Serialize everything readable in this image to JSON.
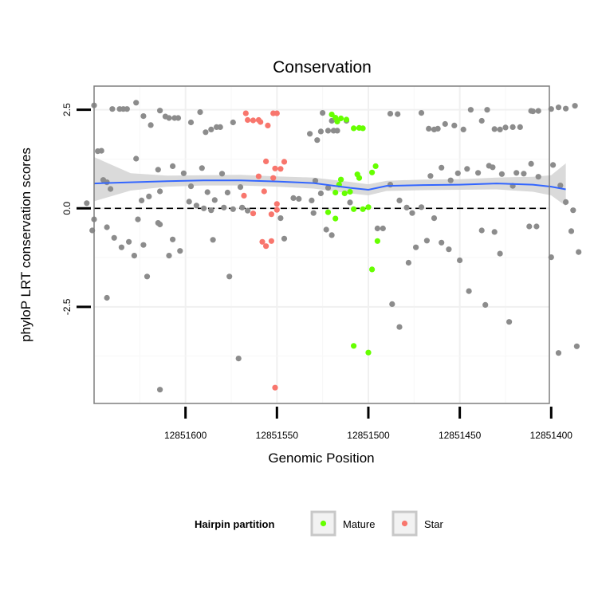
{
  "chart_data": {
    "type": "scatter",
    "title": "Conservation",
    "xlabel": "Genomic Position",
    "ylabel": "phyloP LRT conservation scores",
    "x_reversed": true,
    "xlim": [
      12851401,
      12851650
    ],
    "ylim": [
      -4.95,
      3.1
    ],
    "x_ticks": [
      12851600,
      12851550,
      12851500,
      12851450,
      12851400
    ],
    "x_tick_labels": [
      "12851600",
      "12851550",
      "12851500",
      "12851450",
      "12851400"
    ],
    "y_ticks": [
      2.5,
      0.0,
      -2.5
    ],
    "y_tick_labels": [
      "2.5",
      "0.0",
      "-2.5"
    ],
    "reference_line": {
      "y": 0,
      "style": "dashed",
      "color": "#000000"
    },
    "grid": true,
    "legend": {
      "title": "Hairpin partition",
      "position": "bottom",
      "entries": [
        {
          "label": "Mature",
          "color": "#66ff00"
        },
        {
          "label": "Star",
          "color": "#f8766d"
        }
      ]
    },
    "colors": {
      "other": "#8c8c8c",
      "mature": "#66ff00",
      "star": "#f8766d",
      "smooth_line": "#3366ff",
      "confidence_band": "#d3d3d3"
    },
    "series": [
      {
        "name": "Mature",
        "color": "#66ff00",
        "points": [
          [
            12851520,
            2.38
          ],
          [
            12851518,
            2.3
          ],
          [
            12851517,
            2.2
          ],
          [
            12851515,
            2.28
          ],
          [
            12851512,
            2.25
          ],
          [
            12851508,
            2.03
          ],
          [
            12851505,
            2.04
          ],
          [
            12851503,
            2.03
          ],
          [
            12851515,
            0.73
          ],
          [
            12851518,
            0.4
          ],
          [
            12851513,
            0.38
          ],
          [
            12851505,
            0.77
          ],
          [
            12851498,
            0.91
          ],
          [
            12851496,
            1.07
          ],
          [
            12851510,
            0.42
          ],
          [
            12851508,
            -0.02
          ],
          [
            12851522,
            -0.1
          ],
          [
            12851506,
            0.86
          ],
          [
            12851516,
            0.6
          ],
          [
            12851500,
            0.03
          ],
          [
            12851503,
            -0.02
          ],
          [
            12851518,
            -0.26
          ],
          [
            12851495,
            -0.83
          ],
          [
            12851508,
            -3.49
          ],
          [
            12851500,
            -3.66
          ],
          [
            12851498,
            -1.55
          ]
        ]
      },
      {
        "name": "Star",
        "color": "#f8766d",
        "points": [
          [
            12851567,
            2.41
          ],
          [
            12851566,
            2.24
          ],
          [
            12851563,
            2.23
          ],
          [
            12851560,
            2.24
          ],
          [
            12851559,
            2.19
          ],
          [
            12851555,
            2.1
          ],
          [
            12851552,
            2.41
          ],
          [
            12851550,
            2.41
          ],
          [
            12851556,
            1.19
          ],
          [
            12851551,
            1.01
          ],
          [
            12851548,
            1.0
          ],
          [
            12851546,
            1.18
          ],
          [
            12851560,
            0.81
          ],
          [
            12851568,
            0.32
          ],
          [
            12851557,
            0.43
          ],
          [
            12851552,
            0.77
          ],
          [
            12851550,
            -0.04
          ],
          [
            12851553,
            -0.15
          ],
          [
            12851563,
            -0.13
          ],
          [
            12851550,
            0.11
          ],
          [
            12851556,
            -0.96
          ],
          [
            12851558,
            -0.85
          ],
          [
            12851553,
            -0.83
          ],
          [
            12851551,
            -4.55
          ]
        ]
      },
      {
        "points": [
          [
            12851650,
            2.61
          ],
          [
            12851640,
            2.52
          ],
          [
            12851636,
            2.52
          ],
          [
            12851634,
            2.52
          ],
          [
            12851632,
            2.52
          ],
          [
            12851627,
            2.68
          ],
          [
            12851623,
            2.34
          ],
          [
            12851619,
            2.11
          ],
          [
            12851614,
            2.48
          ],
          [
            12851611,
            2.33
          ],
          [
            12851609,
            2.29
          ],
          [
            12851606,
            2.29
          ],
          [
            12851604,
            2.29
          ],
          [
            12851597,
            2.18
          ],
          [
            12851592,
            2.44
          ],
          [
            12851589,
            1.93
          ],
          [
            12851586,
            2.0
          ],
          [
            12851583,
            2.06
          ],
          [
            12851581,
            2.06
          ],
          [
            12851574,
            2.18
          ],
          [
            12851532,
            1.89
          ],
          [
            12851526,
            1.95
          ],
          [
            12851528,
            1.73
          ],
          [
            12851522,
            1.97
          ],
          [
            12851519,
            1.97
          ],
          [
            12851517,
            1.97
          ],
          [
            12851525,
            2.42
          ],
          [
            12851520,
            2.22
          ],
          [
            12851512,
            2.22
          ],
          [
            12851488,
            2.4
          ],
          [
            12851484,
            2.39
          ],
          [
            12851471,
            2.42
          ],
          [
            12851467,
            2.02
          ],
          [
            12851464,
            2.0
          ],
          [
            12851462,
            2.02
          ],
          [
            12851458,
            2.14
          ],
          [
            12851453,
            2.1
          ],
          [
            12851448,
            2.0
          ],
          [
            12851444,
            2.5
          ],
          [
            12851435,
            2.5
          ],
          [
            12851438,
            2.22
          ],
          [
            12851431,
            2.01
          ],
          [
            12851428,
            2.0
          ],
          [
            12851425,
            2.05
          ],
          [
            12851421,
            2.06
          ],
          [
            12851417,
            2.06
          ],
          [
            12851411,
            2.47
          ],
          [
            12851410,
            2.46
          ],
          [
            12851407,
            2.47
          ],
          [
            12851400,
            2.52
          ],
          [
            12851396,
            2.56
          ],
          [
            12851392,
            2.53
          ],
          [
            12851387,
            2.6
          ],
          [
            12851648,
            1.45
          ],
          [
            12851646,
            1.46
          ],
          [
            12851645,
            0.72
          ],
          [
            12851643,
            0.66
          ],
          [
            12851641,
            0.49
          ],
          [
            12851627,
            1.26
          ],
          [
            12851615,
            0.98
          ],
          [
            12851607,
            1.07
          ],
          [
            12851601,
            0.89
          ],
          [
            12851591,
            1.02
          ],
          [
            12851580,
            0.88
          ],
          [
            12851577,
            0.4
          ],
          [
            12851570,
            0.54
          ],
          [
            12851597,
            0.56
          ],
          [
            12851588,
            0.41
          ],
          [
            12851584,
            0.21
          ],
          [
            12851614,
            0.43
          ],
          [
            12851620,
            0.3
          ],
          [
            12851624,
            0.2
          ],
          [
            12851598,
            0.17
          ],
          [
            12851594,
            0.07
          ],
          [
            12851590,
            0.0
          ],
          [
            12851586,
            -0.05
          ],
          [
            12851579,
            0.02
          ],
          [
            12851574,
            -0.02
          ],
          [
            12851569,
            0.02
          ],
          [
            12851541,
            0.26
          ],
          [
            12851538,
            0.24
          ],
          [
            12851531,
            0.2
          ],
          [
            12851529,
            0.7
          ],
          [
            12851526,
            0.38
          ],
          [
            12851522,
            0.52
          ],
          [
            12851510,
            0.15
          ],
          [
            12851488,
            0.6
          ],
          [
            12851483,
            0.2
          ],
          [
            12851479,
            0.02
          ],
          [
            12851476,
            -0.12
          ],
          [
            12851471,
            0.03
          ],
          [
            12851466,
            0.82
          ],
          [
            12851460,
            1.03
          ],
          [
            12851455,
            0.71
          ],
          [
            12851451,
            0.89
          ],
          [
            12851446,
            1.0
          ],
          [
            12851440,
            0.9
          ],
          [
            12851434,
            1.08
          ],
          [
            12851432,
            1.04
          ],
          [
            12851427,
            0.87
          ],
          [
            12851421,
            0.57
          ],
          [
            12851419,
            0.9
          ],
          [
            12851415,
            0.88
          ],
          [
            12851411,
            1.13
          ],
          [
            12851407,
            0.8
          ],
          [
            12851399,
            1.1
          ],
          [
            12851395,
            0.58
          ],
          [
            12851392,
            0.16
          ],
          [
            12851388,
            -0.05
          ],
          [
            12851654,
            0.13
          ],
          [
            12851650,
            -0.28
          ],
          [
            12851651,
            -0.56
          ],
          [
            12851643,
            -0.48
          ],
          [
            12851639,
            -0.75
          ],
          [
            12851635,
            -0.99
          ],
          [
            12851631,
            -0.85
          ],
          [
            12851628,
            -1.2
          ],
          [
            12851626,
            -0.28
          ],
          [
            12851623,
            -0.93
          ],
          [
            12851621,
            -1.73
          ],
          [
            12851615,
            -0.37
          ],
          [
            12851609,
            -1.2
          ],
          [
            12851607,
            -0.79
          ],
          [
            12851603,
            -1.08
          ],
          [
            12851585,
            -0.8
          ],
          [
            12851576,
            -1.73
          ],
          [
            12851571,
            -3.81
          ],
          [
            12851566,
            -0.06
          ],
          [
            12851548,
            -0.25
          ],
          [
            12851546,
            -0.77
          ],
          [
            12851530,
            -0.12
          ],
          [
            12851523,
            -0.54
          ],
          [
            12851520,
            -0.68
          ],
          [
            12851495,
            -0.51
          ],
          [
            12851492,
            -0.51
          ],
          [
            12851483,
            -3.01
          ],
          [
            12851487,
            -2.43
          ],
          [
            12851478,
            -1.38
          ],
          [
            12851474,
            -0.99
          ],
          [
            12851468,
            -0.82
          ],
          [
            12851464,
            -0.25
          ],
          [
            12851460,
            -0.87
          ],
          [
            12851456,
            -1.04
          ],
          [
            12851450,
            -1.32
          ],
          [
            12851445,
            -2.1
          ],
          [
            12851438,
            -0.56
          ],
          [
            12851436,
            -2.45
          ],
          [
            12851431,
            -0.6
          ],
          [
            12851428,
            -1.15
          ],
          [
            12851423,
            -2.88
          ],
          [
            12851412,
            -0.46
          ],
          [
            12851408,
            -0.46
          ],
          [
            12851400,
            -1.24
          ],
          [
            12851396,
            -3.67
          ],
          [
            12851389,
            -0.58
          ],
          [
            12851386,
            -3.5
          ],
          [
            12851385,
            -1.11
          ],
          [
            12851614,
            -0.41
          ],
          [
            12851614,
            -4.6
          ],
          [
            12851643,
            -2.27
          ]
        ]
      }
    ],
    "smooth": {
      "x": [
        12851650,
        12851630,
        12851610,
        12851590,
        12851570,
        12851550,
        12851530,
        12851510,
        12851500,
        12851490,
        12851470,
        12851450,
        12851430,
        12851410,
        12851400,
        12851392
      ],
      "y": [
        0.63,
        0.66,
        0.69,
        0.71,
        0.71,
        0.68,
        0.64,
        0.52,
        0.47,
        0.57,
        0.59,
        0.6,
        0.63,
        0.6,
        0.55,
        0.48
      ],
      "lower": [
        0.18,
        0.45,
        0.55,
        0.58,
        0.58,
        0.55,
        0.5,
        0.38,
        0.33,
        0.44,
        0.46,
        0.47,
        0.48,
        0.42,
        0.33,
        0.06
      ],
      "upper": [
        1.3,
        0.89,
        0.83,
        0.84,
        0.85,
        0.81,
        0.78,
        0.67,
        0.61,
        0.7,
        0.73,
        0.74,
        0.78,
        0.8,
        0.84,
        1.14
      ]
    }
  }
}
